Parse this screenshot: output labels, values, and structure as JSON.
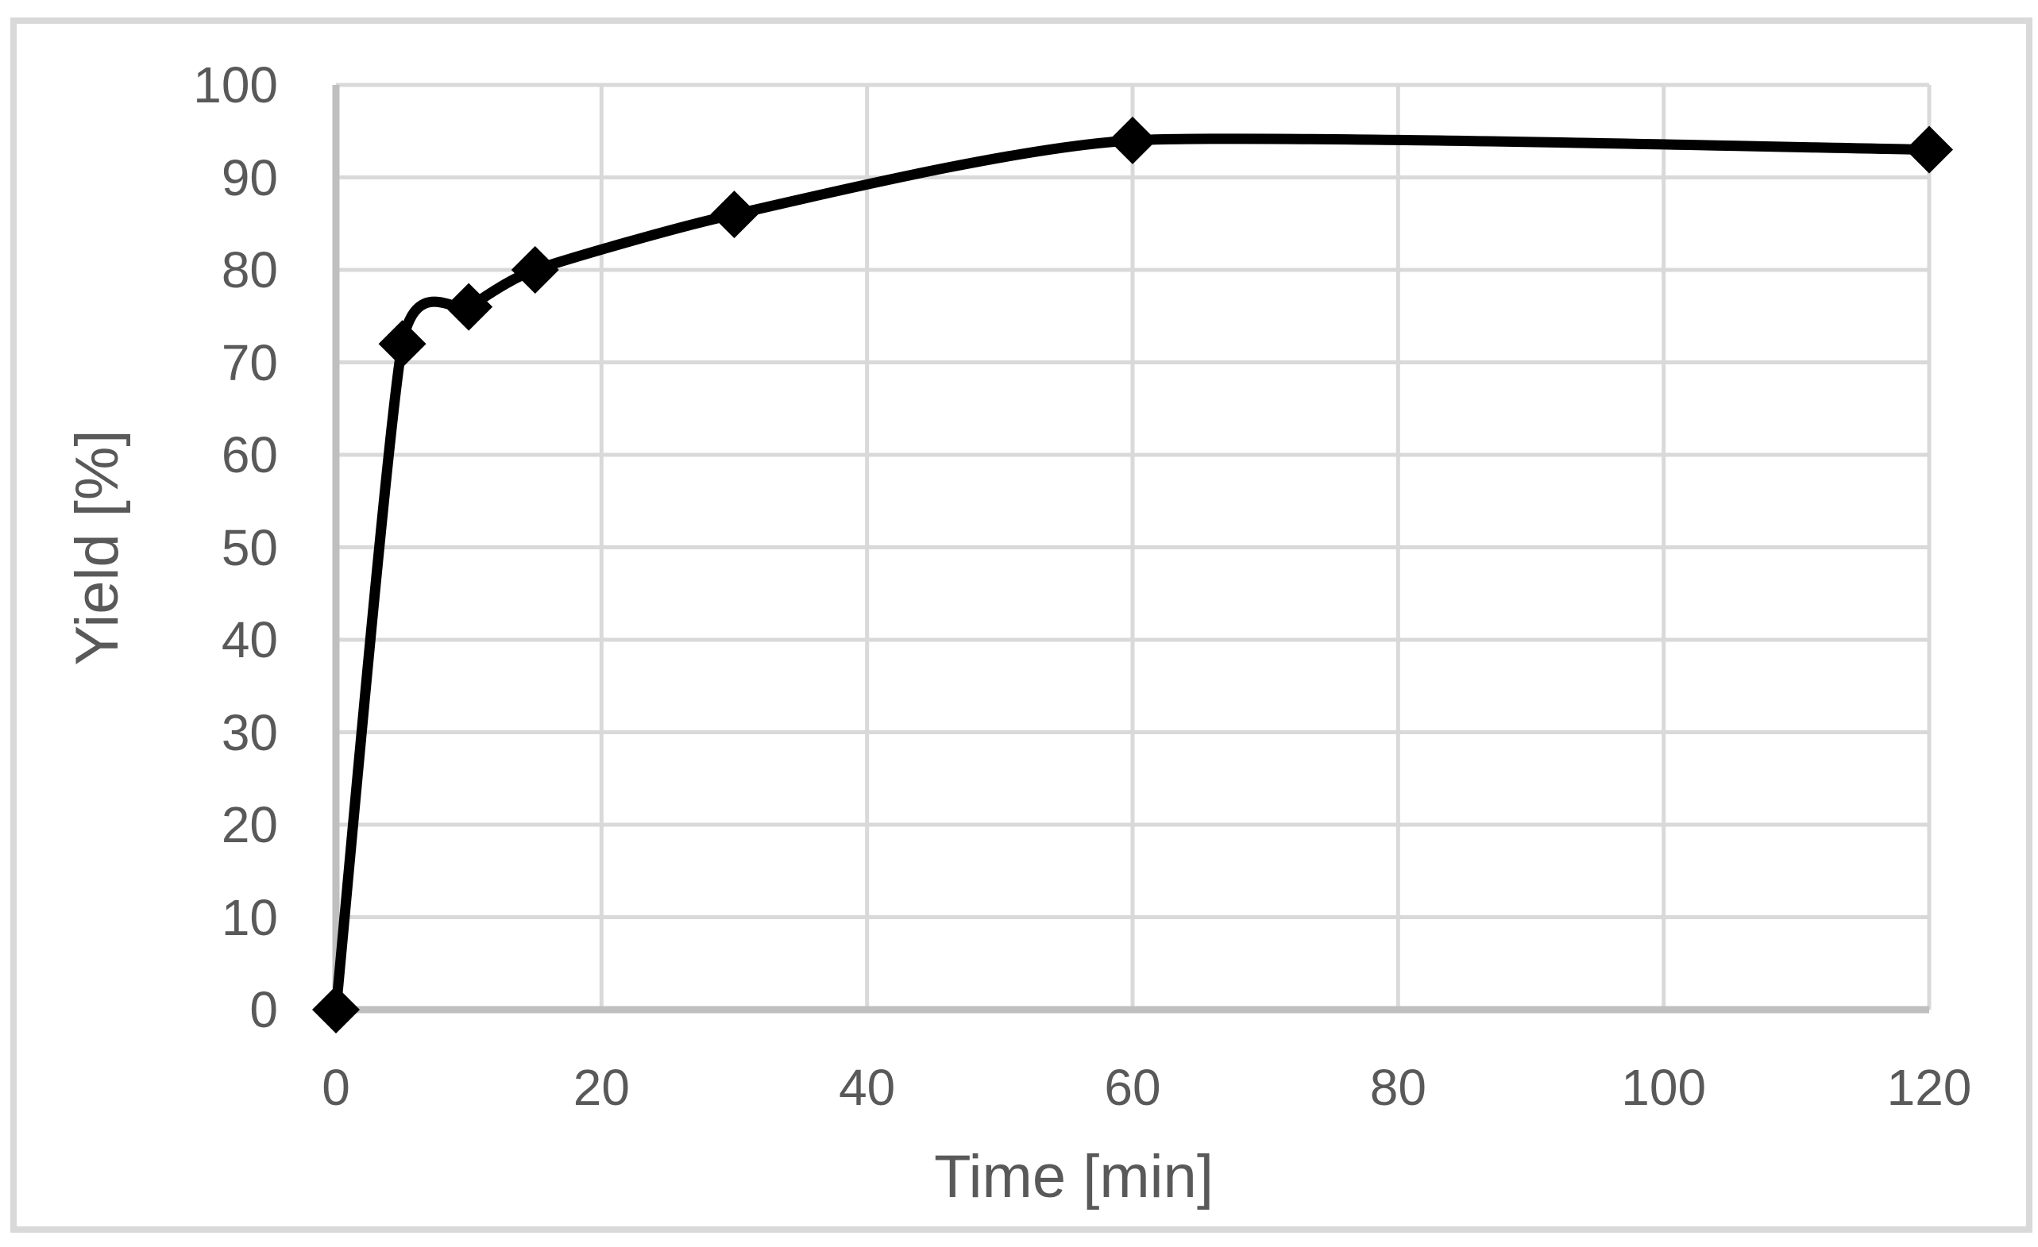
{
  "chart_data": {
    "type": "line",
    "title": "",
    "xlabel": "Time [min]",
    "ylabel": "Yield [%]",
    "series": [
      {
        "name": "Yield",
        "x": [
          0,
          5,
          10,
          15,
          30,
          60,
          120
        ],
        "y": [
          0,
          72,
          76,
          80,
          86,
          94,
          93
        ]
      }
    ],
    "xlim": [
      0,
      120
    ],
    "ylim": [
      0,
      100
    ],
    "xticks": [
      0,
      20,
      40,
      60,
      80,
      100,
      120
    ],
    "yticks": [
      0,
      10,
      20,
      30,
      40,
      50,
      60,
      70,
      80,
      90,
      100
    ],
    "grid": true,
    "legend_position": "none",
    "line_style": "smooth",
    "marker": "diamond",
    "colors": {
      "line": "#000000",
      "marker": "#000000",
      "gridline": "#d9d9d9",
      "axis_line": "#bfbfbf",
      "tick_label": "#595959",
      "axis_title": "#595959",
      "chart_border": "#d9d9d9",
      "background": "#ffffff"
    }
  }
}
